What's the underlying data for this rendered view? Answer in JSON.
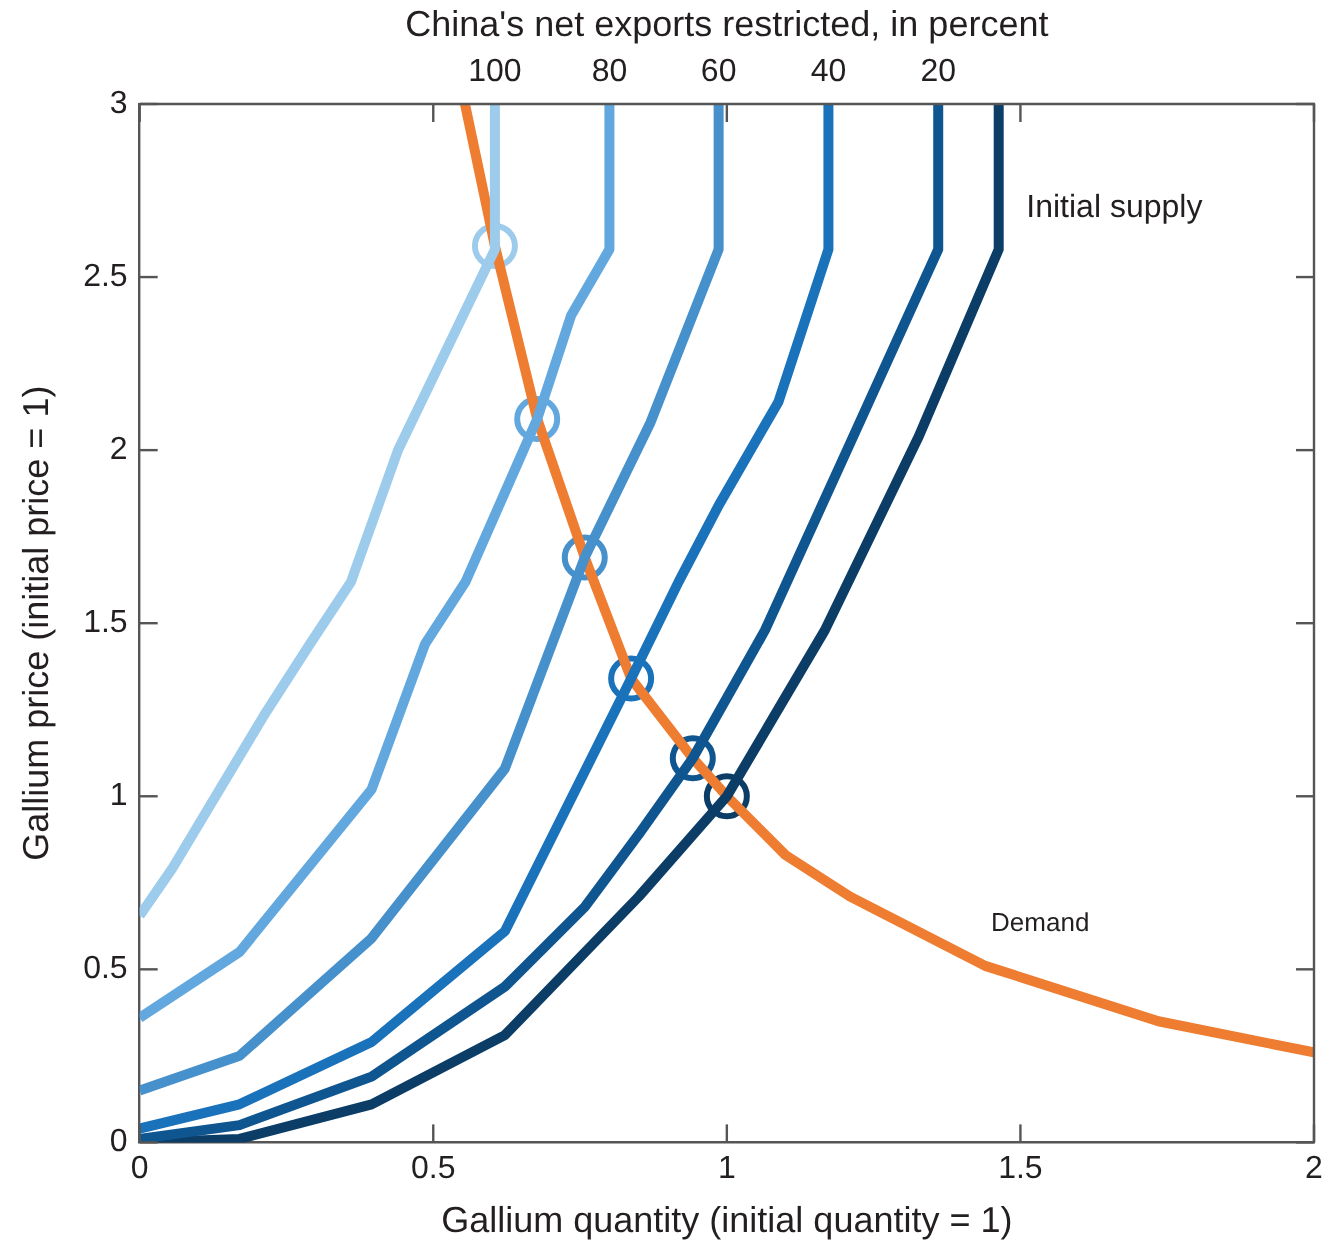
{
  "chart_data": {
    "type": "line",
    "title": "China's net exports restricted, in percent",
    "xlabel": "Gallium quantity (initial quantity = 1)",
    "ylabel": "Gallium price (initial price = 1)",
    "xlim": [
      0,
      2
    ],
    "xticks": [
      0,
      0.5,
      1,
      1.5,
      2
    ],
    "ylim": [
      0,
      3
    ],
    "yticks": [
      0,
      0.5,
      1,
      1.5,
      2,
      2.5,
      3
    ],
    "grid": false,
    "legend": false,
    "marker": "none",
    "line_style": "solid",
    "series": [
      {
        "name": "100",
        "color": "#9dcbec",
        "x": [
          0,
          0.055,
          0.214,
          0.29,
          0.36,
          0.44,
          0.605,
          0.605
        ],
        "values": [
          0.655,
          0.79,
          1.24,
          1.44,
          1.62,
          2.0,
          2.58,
          3
        ]
      },
      {
        "name": "80",
        "color": "#62a8de",
        "x": [
          0,
          0.17,
          0.395,
          0.486,
          0.555,
          0.677,
          0.735,
          0.8,
          0.8
        ],
        "values": [
          0.36,
          0.55,
          1.02,
          1.44,
          1.62,
          2.09,
          2.39,
          2.58,
          3
        ]
      },
      {
        "name": "60",
        "color": "#4690cc",
        "x": [
          0,
          0.17,
          0.395,
          0.622,
          0.758,
          0.87,
          0.986,
          0.986
        ],
        "values": [
          0.15,
          0.25,
          0.59,
          1.08,
          1.69,
          2.08,
          2.58,
          3
        ]
      },
      {
        "name": "40",
        "color": "#1a72bb",
        "x": [
          0,
          0.17,
          0.395,
          0.622,
          0.837,
          0.918,
          0.986,
          1.088,
          1.173,
          1.173
        ],
        "values": [
          0.04,
          0.11,
          0.29,
          0.61,
          1.34,
          1.62,
          1.84,
          2.14,
          2.58,
          3
        ]
      },
      {
        "name": "20",
        "color": "#0f5590",
        "x": [
          0,
          0.17,
          0.395,
          0.622,
          0.758,
          0.85,
          0.942,
          1.065,
          1.21,
          1.36,
          1.36
        ],
        "values": [
          0.01,
          0.05,
          0.19,
          0.45,
          0.68,
          0.89,
          1.11,
          1.48,
          2.02,
          2.58,
          3
        ]
      },
      {
        "color": "#0b3d66",
        "x": [
          0,
          0.17,
          0.395,
          0.622,
          0.85,
          1.0,
          1.167,
          1.327,
          1.463,
          1.463
        ],
        "values": [
          0,
          0.01,
          0.11,
          0.31,
          0.71,
          1.0,
          1.48,
          2.04,
          2.58,
          3
        ]
      },
      {
        "color": "#ee7d31",
        "x": [
          0.554,
          0.605,
          0.677,
          0.758,
          0.837,
          0.942,
          1.0,
          1.1,
          1.21,
          1.44,
          1.735,
          2.0
        ],
        "values": [
          3,
          2.59,
          2.09,
          1.69,
          1.34,
          1.11,
          1.0,
          0.83,
          0.71,
          0.51,
          0.35,
          0.26
        ]
      },
      {
        "type": "scatter",
        "marker": "circle",
        "x": [
          0.605,
          0.677,
          0.758,
          0.837,
          0.942,
          1.0
        ],
        "values": [
          2.59,
          2.09,
          1.69,
          1.34,
          1.11,
          1.0
        ],
        "colors": [
          "#9dcbec",
          "#62a8de",
          "#4690cc",
          "#1a72bb",
          "#0f5590",
          "#0b3d66"
        ]
      }
    ],
    "annotations": [
      "Initial supply",
      "Demand"
    ]
  }
}
